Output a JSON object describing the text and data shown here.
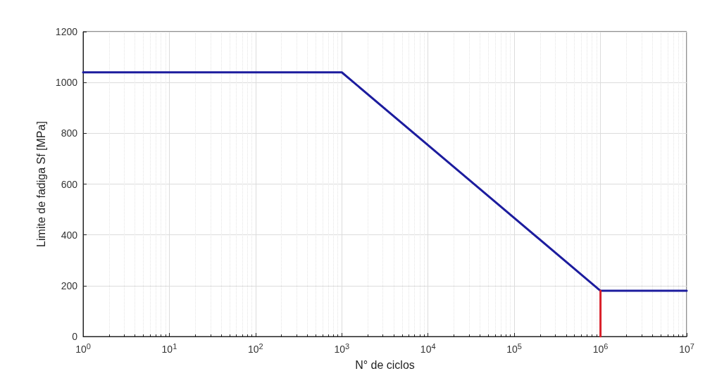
{
  "chart_data": {
    "type": "line",
    "xlabel": "N° de ciclos",
    "ylabel": "Limite de fadiga Sf [MPa]",
    "log": "x",
    "grid": true,
    "xlim": [
      1,
      10000000
    ],
    "ylim": [
      0,
      1200
    ],
    "xticks": [
      {
        "value": 1,
        "label": "10$^{0}$"
      },
      {
        "value": 10,
        "label": "10$^{1}$"
      },
      {
        "value": 100,
        "label": "10$^{2}$"
      },
      {
        "value": 1000,
        "label": "10$^{3}$"
      },
      {
        "value": 10000,
        "label": "10$^{4}$"
      },
      {
        "value": 100000,
        "label": "10$^{5}$"
      },
      {
        "value": 1000000,
        "label": "10$^{6}$"
      },
      {
        "value": 10000000,
        "label": "10$^{7}$"
      }
    ],
    "yticks": [
      0,
      200,
      400,
      600,
      800,
      1000,
      1200
    ],
    "series": [
      {
        "color": "#1c1c9e",
        "x": [
          1,
          1000,
          1000000,
          10000000
        ],
        "values": [
          1040,
          1040,
          180,
          180
        ]
      },
      {
        "color": "#d9202a",
        "x": [
          1000000,
          1000000
        ],
        "values": [
          0,
          180
        ]
      }
    ]
  }
}
